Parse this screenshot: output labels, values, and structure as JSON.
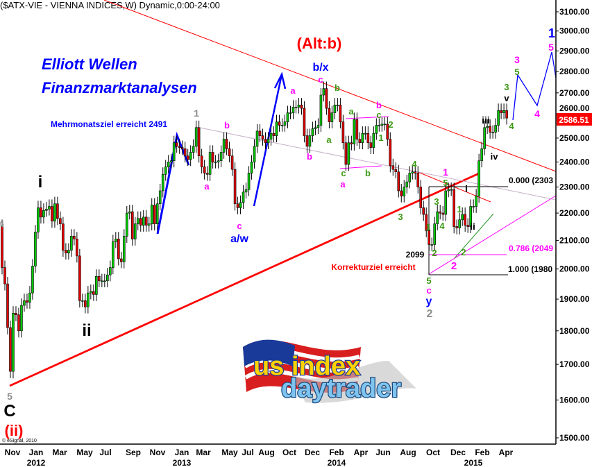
{
  "header": {
    "title": "($ATX-VIE - VIENNA INDICES,W) Dynamic,0:00-24:00"
  },
  "branding": {
    "line1": "Elliott Wellen",
    "line2": "Finanzmarktanalysen",
    "copyright": "© eSignal, 2010",
    "logo_text_1": "us index",
    "logo_text_2": "daytrader"
  },
  "chart_data": {
    "type": "candlestick",
    "scale": "log",
    "ylim": [
      1500,
      3100
    ],
    "yticks": [
      "1500.00",
      "1600.00",
      "1700.00",
      "1800.00",
      "1900.00",
      "2000.00",
      "2100.00",
      "2200.00",
      "2300.00",
      "2400.00",
      "2500.00",
      "2600.00",
      "2700.00",
      "2800.00",
      "2900.00",
      "3000.00",
      "3100.00"
    ],
    "xticks_months": [
      "Nov",
      "Jan",
      "Mar",
      "May",
      "Jul",
      "Sep",
      "Nov",
      "Jan",
      "Mar",
      "May",
      "Jul",
      "Aug",
      "Oct",
      "Dec",
      "Feb",
      "Apr",
      "Jun",
      "Aug",
      "Oct",
      "Dec",
      "Feb",
      "Apr"
    ],
    "xticks_years": [
      "2012",
      "2013",
      "2014",
      "2015"
    ],
    "interval": "weekly",
    "last_price": "2586.51",
    "closes": [
      2005,
      1950,
      1810,
      1680,
      1855,
      1850,
      1800,
      1880,
      1895,
      1890,
      1920,
      2010,
      2130,
      2220,
      2185,
      2210,
      2215,
      2225,
      2170,
      2235,
      2180,
      2160,
      2065,
      2055,
      2065,
      2115,
      2105,
      2045,
      1895,
      1895,
      1875,
      1920,
      1925,
      1915,
      1975,
      1960,
      1960,
      1960,
      1980,
      2005,
      2095,
      2105,
      2035,
      2025,
      2115,
      2200,
      2205,
      2105,
      2160,
      2180,
      2155,
      2185,
      2155,
      2160,
      2230,
      2160,
      2235,
      2285,
      2350,
      2380,
      2400,
      2405,
      2480,
      2465,
      2460,
      2455,
      2425,
      2410,
      2440,
      2465,
      2545,
      2425,
      2380,
      2355,
      2350,
      2440,
      2400,
      2400,
      2405,
      2440,
      2495,
      2455,
      2425,
      2370,
      2235,
      2220,
      2240,
      2280,
      2290,
      2355,
      2400,
      2465,
      2530,
      2510,
      2495,
      2480,
      2495,
      2520,
      2510,
      2570,
      2555,
      2555,
      2570,
      2610,
      2610,
      2635,
      2635,
      2645,
      2630,
      2510,
      2465,
      2510,
      2540,
      2545,
      2555,
      2690,
      2720,
      2630,
      2570,
      2610,
      2645,
      2645,
      2570,
      2480,
      2390,
      2480,
      2475,
      2580,
      2495,
      2480,
      2520,
      2520,
      2480,
      2460,
      2520,
      2555,
      2555,
      2560,
      2560,
      2495,
      2385,
      2370,
      2360,
      2285,
      2265,
      2300,
      2320,
      2355,
      2360,
      2355,
      2300,
      2220,
      2195,
      2135,
      2085,
      2085,
      2160,
      2205,
      2200,
      2195,
      2285,
      2290,
      2290,
      2150,
      2145,
      2175,
      2195,
      2155,
      2150,
      2225,
      2225,
      2265,
      2405,
      2455,
      2545,
      2550,
      2525,
      2525,
      2555,
      2620,
      2610,
      2620,
      2586.51
    ],
    "colors": {
      "up": "#00c800",
      "down": "#e00000",
      "price_tag": "#ff0000",
      "trendline": "#ff0000",
      "wave_magenta": "#ff00ff",
      "wave_green": "#3c9a14",
      "wave_blue": "#0000ff",
      "wave_gray": "#8c8c8c"
    },
    "annotations": [
      {
        "text": "1",
        "color": "#8c8c8c"
      },
      {
        "text": "b",
        "color": "#ff00ff"
      },
      {
        "text": "a",
        "color": "#ff00ff"
      },
      {
        "text": "c",
        "color": "#ff00ff"
      },
      {
        "text": "a/w",
        "color": "#0000ff"
      },
      {
        "text": "a",
        "color": "#ff00ff"
      },
      {
        "text": "b",
        "color": "#ff00ff"
      },
      {
        "text": "b/x",
        "color": "#0000ff"
      },
      {
        "text": "c",
        "color": "#ff00ff"
      },
      {
        "text": "b",
        "color": "#3c9a14"
      },
      {
        "text": "a",
        "color": "#3c9a14"
      },
      {
        "text": "a",
        "color": "#3c9a14"
      },
      {
        "text": "c",
        "color": "#3c9a14"
      },
      {
        "text": "a",
        "color": "#ff00ff"
      },
      {
        "text": "b",
        "color": "#3c9a14"
      },
      {
        "text": "b",
        "color": "#ff00ff"
      },
      {
        "text": "c",
        "color": "#3c9a14"
      },
      {
        "text": "2",
        "color": "#3c9a14"
      },
      {
        "text": "1",
        "color": "#3c9a14"
      },
      {
        "text": "4",
        "color": "#3c9a14"
      },
      {
        "text": "3",
        "color": "#3c9a14"
      },
      {
        "text": "1",
        "color": "#ff00ff"
      },
      {
        "text": "5",
        "color": "#3c9a14"
      },
      {
        "text": "3",
        "color": "#3c9a14"
      },
      {
        "text": "4",
        "color": "#3c9a14"
      },
      {
        "text": "1",
        "color": "#3c9a14"
      },
      {
        "text": "2",
        "color": "#3c9a14"
      },
      {
        "text": "1",
        "color": "#3c9a14"
      },
      {
        "text": "i",
        "color": "#000000"
      },
      {
        "text": "ii",
        "color": "#000000"
      },
      {
        "text": "2",
        "color": "#3c9a14"
      },
      {
        "text": "2",
        "color": "#ff00ff"
      },
      {
        "text": "2099",
        "color": "#000000"
      },
      {
        "text": "Korrekturziel erreicht",
        "color": "#ff0000"
      },
      {
        "text": "5",
        "color": "#3c9a14"
      },
      {
        "text": "c",
        "color": "#ff00ff"
      },
      {
        "text": "y",
        "color": "#0000ff"
      },
      {
        "text": "2",
        "color": "#8c8c8c"
      },
      {
        "text": "iii",
        "color": "#000000"
      },
      {
        "text": "iv",
        "color": "#000000"
      },
      {
        "text": "4",
        "color": "#3c9a14"
      },
      {
        "text": "3",
        "color": "#3c9a14"
      },
      {
        "text": "v",
        "color": "#000000"
      },
      {
        "text": "3",
        "color": "#ff00ff"
      },
      {
        "text": "5",
        "color": "#3c9a14"
      },
      {
        "text": "4",
        "color": "#ff00ff"
      },
      {
        "text": "1",
        "color": "#0000ff"
      },
      {
        "text": "5",
        "color": "#ff00ff"
      },
      {
        "text": "i",
        "color": "#000000"
      },
      {
        "text": "ii",
        "color": "#000000"
      },
      {
        "text": "4",
        "color": "#8c8c8c"
      },
      {
        "text": "5",
        "color": "#8c8c8c"
      },
      {
        "text": "C",
        "color": "#000000"
      },
      {
        "text": "(ii)",
        "color": "#ff0000"
      },
      {
        "text": "(Alt:b)",
        "color": "#ff0000"
      },
      {
        "text": "Mehrmonatsziel erreicht 2491",
        "color": "#0000ff"
      },
      {
        "text": "0.000 (2303",
        "color": "#000000"
      },
      {
        "text": "0.786 (2049",
        "color": "#ff00ff"
      },
      {
        "text": "1.000 (1980",
        "color": "#000000"
      }
    ]
  }
}
